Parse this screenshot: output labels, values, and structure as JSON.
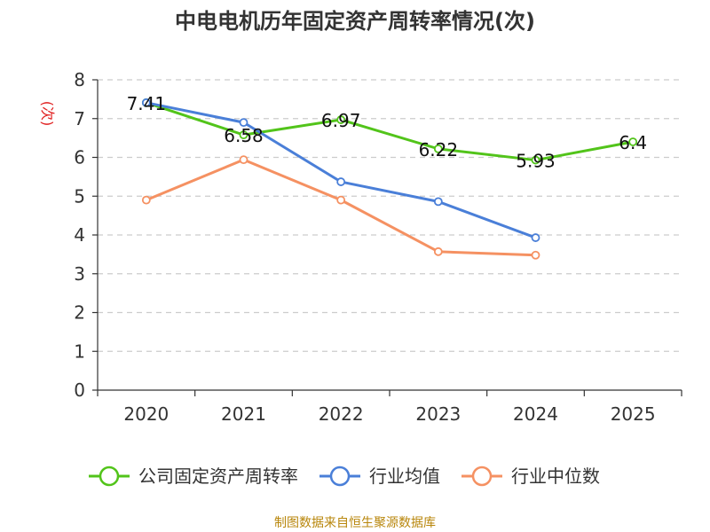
{
  "chart_data": {
    "type": "line",
    "title": "中电电机历年固定资产周转率情况(次)",
    "ylabel": "(次)",
    "xlabel": "",
    "ylim": [
      0,
      8
    ],
    "yticks": [
      0,
      1,
      2,
      3,
      4,
      5,
      6,
      7,
      8
    ],
    "categories": [
      "2020",
      "2021",
      "2022",
      "2023",
      "2024",
      "2025"
    ],
    "grid": true,
    "legend_position": "bottom",
    "series": [
      {
        "name": "公司固定资产周转率",
        "color": "#52c41a",
        "values": [
          7.41,
          6.58,
          6.97,
          6.22,
          5.93,
          6.4
        ],
        "labels": [
          "7.41",
          "6.58",
          "6.97",
          "6.22",
          "5.93",
          "6.4"
        ]
      },
      {
        "name": "行业均值",
        "color": "#4a7fd8",
        "values": [
          7.41,
          6.9,
          5.37,
          4.86,
          3.93,
          null
        ]
      },
      {
        "name": "行业中位数",
        "color": "#f59162",
        "values": [
          4.9,
          5.94,
          4.9,
          3.57,
          3.48,
          null
        ]
      }
    ]
  },
  "footer": {
    "source": "制图数据来自恒生聚源数据库"
  }
}
